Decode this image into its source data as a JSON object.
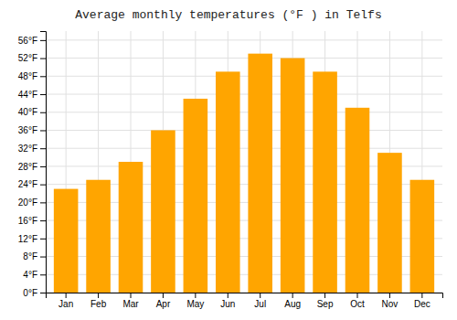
{
  "chart_data": {
    "type": "bar",
    "title": "Average monthly temperatures (°F ) in Telfs",
    "categories": [
      "Jan",
      "Feb",
      "Mar",
      "Apr",
      "May",
      "Jun",
      "Jul",
      "Aug",
      "Sep",
      "Oct",
      "Nov",
      "Dec"
    ],
    "values": [
      23,
      25,
      29,
      36,
      43,
      49,
      53,
      52,
      49,
      41,
      31,
      25
    ],
    "color": "#FFA500",
    "ylim": [
      0,
      58
    ],
    "yticks": [
      {
        "value": 0,
        "label": "0°F"
      },
      {
        "value": 4,
        "label": "4°F"
      },
      {
        "value": 8,
        "label": "8°F"
      },
      {
        "value": 12,
        "label": "12°F"
      },
      {
        "value": 16,
        "label": "16°F"
      },
      {
        "value": 20,
        "label": "20°F"
      },
      {
        "value": 24,
        "label": "24°F"
      },
      {
        "value": 28,
        "label": "28°F"
      },
      {
        "value": 32,
        "label": "32°F"
      },
      {
        "value": 36,
        "label": "36°F"
      },
      {
        "value": 40,
        "label": "40°F"
      },
      {
        "value": 44,
        "label": "44°F"
      },
      {
        "value": 48,
        "label": "48°F"
      },
      {
        "value": 52,
        "label": "52°F"
      },
      {
        "value": 56,
        "label": "56°F"
      }
    ],
    "grid": true
  }
}
